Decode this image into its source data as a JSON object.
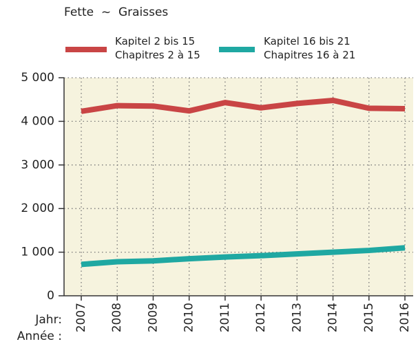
{
  "chart_data": {
    "type": "line",
    "title": "Fette  ~  Graisses",
    "x_label": "Jahr:\nAnnée :",
    "categories": [
      "2007",
      "2008",
      "2009",
      "2010",
      "2011",
      "2012",
      "2013",
      "2014",
      "2015",
      "2016"
    ],
    "series": [
      {
        "name": "Kapitel 2 bis 15\nChapitres 2 à 15",
        "color": "#c94545",
        "values": [
          4230,
          4360,
          4350,
          4240,
          4430,
          4310,
          4410,
          4480,
          4300,
          4290
        ]
      },
      {
        "name": "Kapitel 16 bis 21\nChapitres 16 à 21",
        "color": "#1fa8a2",
        "values": [
          720,
          780,
          800,
          850,
          890,
          920,
          960,
          1000,
          1040,
          1100
        ]
      }
    ],
    "ylim": [
      0,
      5000
    ],
    "yticks": [
      0,
      {
        "value": 1000,
        "label": "1 000"
      },
      {
        "value": 2000,
        "label": "2 000"
      },
      {
        "value": 3000,
        "label": "3 000"
      },
      {
        "value": 4000,
        "label": "4 000"
      },
      {
        "value": 5000,
        "label": "5 000"
      }
    ],
    "grid": true,
    "background": "#f6f3de"
  }
}
